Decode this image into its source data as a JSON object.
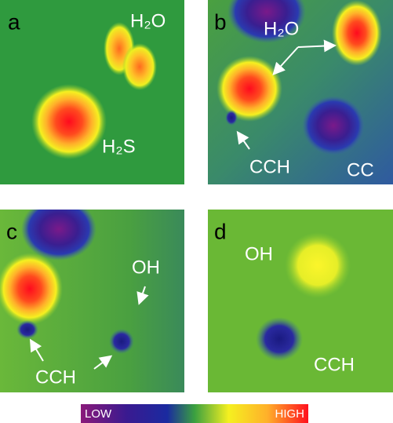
{
  "panels": [
    {
      "label": "a",
      "annotations": [
        "H₂O",
        "H₂S"
      ]
    },
    {
      "label": "b",
      "annotations": [
        "H₂O",
        "CCH",
        "CC"
      ]
    },
    {
      "label": "c",
      "annotations": [
        "OH",
        "CCH"
      ]
    },
    {
      "label": "d",
      "annotations": [
        "OH",
        "CCH"
      ]
    }
  ],
  "colorbar": {
    "low": "LOW",
    "high": "HIGH"
  }
}
